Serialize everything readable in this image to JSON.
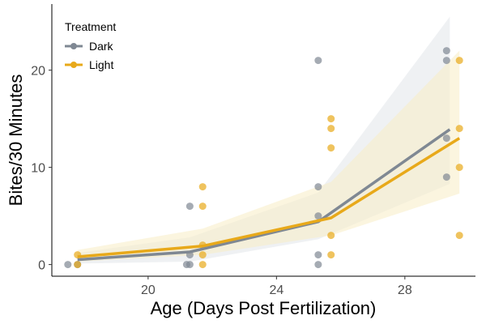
{
  "chart_data": {
    "type": "scatter",
    "xlabel": "Age (Days Post Fertilization)",
    "ylabel": "Bites/30 Minutes",
    "xlim": [
      17.0,
      30.2
    ],
    "ylim": [
      -1.2,
      26.8
    ],
    "x_ticks": [
      20,
      24,
      28
    ],
    "y_ticks": [
      0,
      10,
      20
    ],
    "x_tick_labels": [
      "20",
      "24",
      "28"
    ],
    "y_tick_labels": [
      "0",
      "10",
      "20"
    ],
    "grid": false,
    "legend": {
      "title": "Treatment",
      "position": "top-left"
    },
    "series": [
      {
        "name": "Dark",
        "color": "#7f8893",
        "trend_x": [
          17.8,
          21.3,
          25.3,
          29.4
        ],
        "trend_y": [
          0.5,
          1.3,
          4.4,
          13.9
        ],
        "ci_lower": [
          0.1,
          0.3,
          2.6,
          8.3
        ],
        "ci_upper": [
          1.2,
          2.8,
          7.4,
          25.5
        ],
        "points": [
          {
            "x": 17.5,
            "y": 0
          },
          {
            "x": 17.8,
            "y": 0
          },
          {
            "x": 21.3,
            "y": 6
          },
          {
            "x": 21.3,
            "y": 1
          },
          {
            "x": 21.3,
            "y": 0
          },
          {
            "x": 21.2,
            "y": 0
          },
          {
            "x": 25.3,
            "y": 21
          },
          {
            "x": 25.3,
            "y": 8
          },
          {
            "x": 25.3,
            "y": 5
          },
          {
            "x": 25.3,
            "y": 1
          },
          {
            "x": 25.3,
            "y": 0
          },
          {
            "x": 29.3,
            "y": 22
          },
          {
            "x": 29.3,
            "y": 21
          },
          {
            "x": 29.3,
            "y": 13
          },
          {
            "x": 29.3,
            "y": 9
          }
        ]
      },
      {
        "name": "Light",
        "color": "#e8a91a",
        "trend_x": [
          17.8,
          21.7,
          25.7,
          29.7
        ],
        "trend_y": [
          0.8,
          1.9,
          4.8,
          13.0
        ],
        "ci_lower": [
          0.3,
          1.0,
          3.0,
          7.3
        ],
        "ci_upper": [
          1.5,
          3.7,
          8.5,
          22.0
        ],
        "points": [
          {
            "x": 17.8,
            "y": 1
          },
          {
            "x": 17.8,
            "y": 0
          },
          {
            "x": 21.7,
            "y": 8
          },
          {
            "x": 21.7,
            "y": 6
          },
          {
            "x": 21.7,
            "y": 2
          },
          {
            "x": 21.7,
            "y": 1
          },
          {
            "x": 21.7,
            "y": 0
          },
          {
            "x": 25.7,
            "y": 15
          },
          {
            "x": 25.7,
            "y": 14
          },
          {
            "x": 25.7,
            "y": 12
          },
          {
            "x": 25.7,
            "y": 3
          },
          {
            "x": 25.7,
            "y": 1
          },
          {
            "x": 29.7,
            "y": 21
          },
          {
            "x": 29.7,
            "y": 14
          },
          {
            "x": 29.7,
            "y": 10
          },
          {
            "x": 29.7,
            "y": 3
          }
        ]
      }
    ]
  }
}
